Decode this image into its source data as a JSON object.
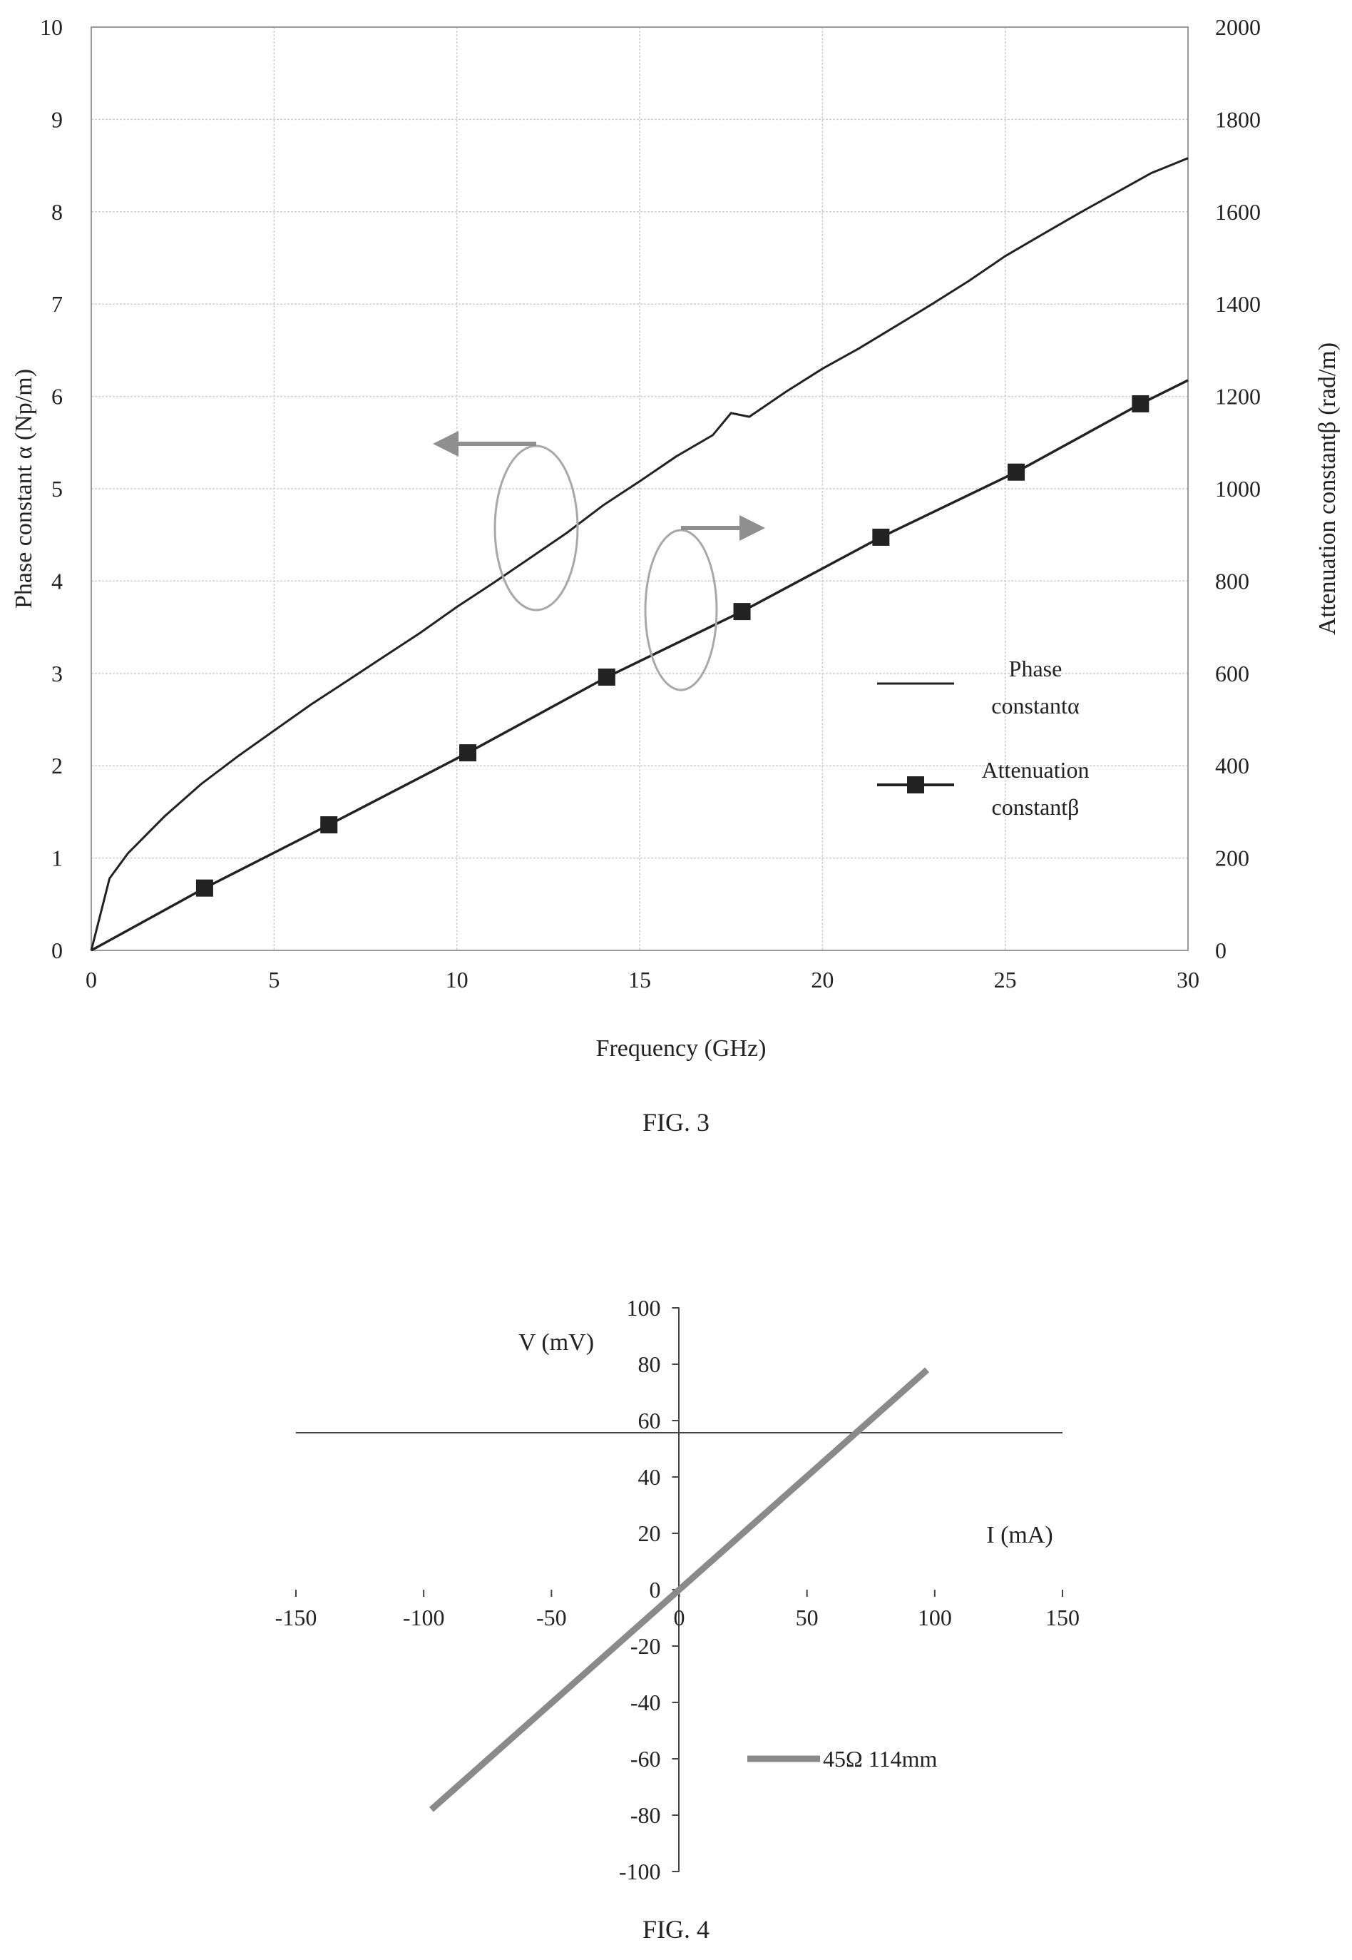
{
  "figures": [
    {
      "caption": "FIG. 3"
    },
    {
      "caption": "FIG. 4"
    }
  ],
  "chart_data": [
    {
      "type": "line",
      "figure": "FIG. 3",
      "xlabel": "Frequency (GHz)",
      "ylabel_left": "Phase constant α (Np/m)",
      "ylabel_right": "Attenuation constantβ (rad/m)",
      "xlim": [
        0,
        30
      ],
      "ylim_left": [
        0,
        10
      ],
      "ylim_right": [
        0,
        2000
      ],
      "xticks": [
        "0",
        "5",
        "10",
        "15",
        "20",
        "25",
        "30"
      ],
      "yticks_left": [
        "0",
        "1",
        "2",
        "3",
        "4",
        "5",
        "6",
        "7",
        "8",
        "9",
        "10"
      ],
      "yticks_right": [
        "0",
        "200",
        "400",
        "600",
        "800",
        "1000",
        "1200",
        "1400",
        "1600",
        "1800",
        "2000"
      ],
      "grid": true,
      "series": [
        {
          "name": "Phase constantα",
          "legend_lines": [
            "Phase",
            "constantα"
          ],
          "axis": "left",
          "color": "#222222",
          "marker": "none",
          "x": [
            0,
            0.5,
            1,
            2,
            3,
            4,
            5,
            6,
            7,
            8,
            9,
            10,
            11,
            12,
            13,
            14,
            15,
            16,
            17,
            17.5,
            18,
            19,
            20,
            21,
            22,
            23,
            24,
            25,
            26,
            27,
            28,
            29,
            30
          ],
          "y": [
            0,
            0.78,
            1.05,
            1.45,
            1.8,
            2.1,
            2.38,
            2.66,
            2.92,
            3.18,
            3.44,
            3.72,
            3.98,
            4.25,
            4.52,
            4.82,
            5.08,
            5.35,
            5.58,
            5.82,
            5.78,
            6.05,
            6.3,
            6.52,
            6.76,
            7.0,
            7.25,
            7.52,
            7.75,
            7.98,
            8.2,
            8.42,
            8.58
          ]
        },
        {
          "name": "Attenuation constantβ",
          "legend_lines": [
            "Attenuation",
            "constantβ"
          ],
          "axis": "right",
          "color": "#222222",
          "marker": "square",
          "x": [
            0,
            3.1,
            6.5,
            10.3,
            14.1,
            17.8,
            21.6,
            25.3,
            28.7,
            30
          ],
          "y": [
            0,
            135,
            272,
            428,
            592,
            734,
            895,
            1036,
            1184,
            1235
          ],
          "marker_x": [
            3.1,
            6.5,
            10.3,
            14.1,
            17.8,
            21.6,
            25.3,
            28.7
          ]
        }
      ]
    },
    {
      "type": "line",
      "figure": "FIG. 4",
      "xlabel": "I (mA)",
      "ylabel": "V (mV)",
      "xlim": [
        -150,
        150
      ],
      "ylim": [
        -100,
        100
      ],
      "xticks": [
        "-150",
        "-100",
        "-50",
        "0",
        "50",
        "100",
        "150"
      ],
      "yticks": [
        "-100",
        "-80",
        "-60",
        "-40",
        "-20",
        "0",
        "20",
        "40",
        "60",
        "80",
        "100"
      ],
      "series": [
        {
          "name": "45Ω 114mm",
          "color": "#8a8a8a",
          "x": [
            -97,
            97
          ],
          "y": [
            -78,
            78
          ]
        }
      ]
    }
  ]
}
